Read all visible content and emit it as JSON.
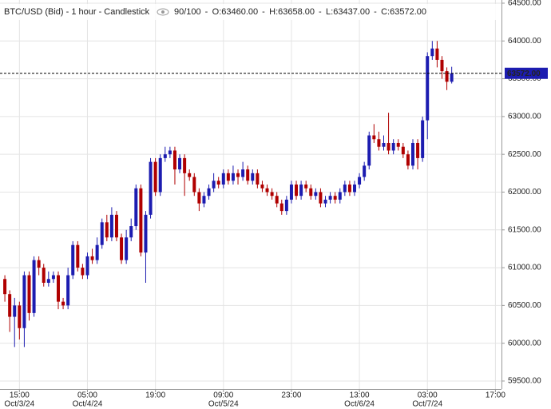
{
  "chart_data": {
    "type": "candlestick",
    "title": "BTC/USD (Bid) - 1 hour - Candlestick",
    "header_items": [
      "90/100",
      "O:63460.00",
      "H:63658.00",
      "L:63437.00",
      "C:63572.00"
    ],
    "up_color": "#1c1cb0",
    "down_color": "#b00000",
    "grid": true,
    "last_price": {
      "value": 63572,
      "label": "63572.00"
    },
    "x": [
      "2024-10-03T12:00",
      "2024-10-03T13:00",
      "2024-10-03T14:00",
      "2024-10-03T15:00",
      "2024-10-03T16:00",
      "2024-10-03T17:00",
      "2024-10-03T18:00",
      "2024-10-03T19:00",
      "2024-10-03T20:00",
      "2024-10-03T21:00",
      "2024-10-03T22:00",
      "2024-10-03T23:00",
      "2024-10-04T00:00",
      "2024-10-04T01:00",
      "2024-10-04T02:00",
      "2024-10-04T03:00",
      "2024-10-04T04:00",
      "2024-10-04T05:00",
      "2024-10-04T06:00",
      "2024-10-04T07:00",
      "2024-10-04T08:00",
      "2024-10-04T09:00",
      "2024-10-04T10:00",
      "2024-10-04T11:00",
      "2024-10-04T12:00",
      "2024-10-04T13:00",
      "2024-10-04T14:00",
      "2024-10-04T15:00",
      "2024-10-04T16:00",
      "2024-10-04T17:00",
      "2024-10-04T18:00",
      "2024-10-04T19:00",
      "2024-10-04T20:00",
      "2024-10-04T21:00",
      "2024-10-04T22:00",
      "2024-10-04T23:00",
      "2024-10-05T00:00",
      "2024-10-05T01:00",
      "2024-10-05T02:00",
      "2024-10-05T03:00",
      "2024-10-05T04:00",
      "2024-10-05T05:00",
      "2024-10-05T06:00",
      "2024-10-05T07:00",
      "2024-10-05T08:00",
      "2024-10-05T09:00",
      "2024-10-05T10:00",
      "2024-10-05T11:00",
      "2024-10-05T12:00",
      "2024-10-05T13:00",
      "2024-10-05T14:00",
      "2024-10-05T15:00",
      "2024-10-05T16:00",
      "2024-10-05T17:00",
      "2024-10-05T18:00",
      "2024-10-05T19:00",
      "2024-10-05T20:00",
      "2024-10-05T21:00",
      "2024-10-05T22:00",
      "2024-10-05T23:00",
      "2024-10-06T00:00",
      "2024-10-06T01:00",
      "2024-10-06T02:00",
      "2024-10-06T03:00",
      "2024-10-06T04:00",
      "2024-10-06T05:00",
      "2024-10-06T06:00",
      "2024-10-06T07:00",
      "2024-10-06T08:00",
      "2024-10-06T09:00",
      "2024-10-06T10:00",
      "2024-10-06T11:00",
      "2024-10-06T12:00",
      "2024-10-06T13:00",
      "2024-10-06T14:00",
      "2024-10-06T15:00",
      "2024-10-06T16:00",
      "2024-10-06T17:00",
      "2024-10-06T18:00",
      "2024-10-06T19:00",
      "2024-10-06T20:00",
      "2024-10-06T21:00",
      "2024-10-06T22:00",
      "2024-10-06T23:00",
      "2024-10-07T00:00",
      "2024-10-07T01:00",
      "2024-10-07T02:00",
      "2024-10-07T03:00",
      "2024-10-07T04:00",
      "2024-10-07T05:00",
      "2024-10-07T06:00",
      "2024-10-07T07:00",
      "2024-10-07T08:00"
    ],
    "open": [
      60850,
      60650,
      60350,
      60500,
      60200,
      60900,
      60400,
      61100,
      61000,
      60800,
      60850,
      60900,
      60550,
      60500,
      60900,
      61300,
      61000,
      60900,
      61150,
      61100,
      61300,
      61600,
      61400,
      61700,
      61400,
      61100,
      61400,
      61550,
      62050,
      61200,
      61700,
      62400,
      62000,
      62450,
      62500,
      62550,
      62300,
      62450,
      62250,
      62200,
      62000,
      61850,
      61950,
      62050,
      62150,
      62100,
      62250,
      62150,
      62250,
      62200,
      62300,
      62150,
      62250,
      62100,
      62050,
      62000,
      61950,
      61850,
      61750,
      61900,
      62100,
      61950,
      62100,
      62050,
      61950,
      62000,
      61850,
      61900,
      61950,
      61900,
      62000,
      62100,
      62000,
      62100,
      62200,
      62350,
      62750,
      62700,
      62600,
      62650,
      62550,
      62650,
      62600,
      62500,
      62350,
      62650,
      62450,
      62950,
      63800,
      63900,
      63750,
      63600,
      63460
    ],
    "high": [
      60900,
      60700,
      60600,
      60550,
      60950,
      60950,
      61150,
      61150,
      61050,
      60950,
      60950,
      60950,
      60600,
      61000,
      61350,
      61350,
      61050,
      61200,
      61250,
      61400,
      61650,
      61700,
      61800,
      61750,
      61450,
      61500,
      61650,
      62100,
      62100,
      61750,
      62450,
      62450,
      62500,
      62600,
      62600,
      62600,
      62500,
      62500,
      62300,
      62250,
      62050,
      62000,
      62100,
      62250,
      62200,
      62300,
      62300,
      62350,
      62300,
      62400,
      62350,
      62300,
      62300,
      62150,
      62100,
      62050,
      62000,
      61900,
      61950,
      62150,
      62150,
      62150,
      62150,
      62100,
      62050,
      62050,
      61950,
      62000,
      62000,
      62050,
      62150,
      62150,
      62150,
      62250,
      62400,
      62800,
      62900,
      62800,
      62750,
      63050,
      62700,
      62700,
      62650,
      62550,
      62700,
      62700,
      63000,
      63850,
      64000,
      64000,
      63800,
      63650,
      63658
    ],
    "low": [
      60550,
      60150,
      59950,
      60050,
      59950,
      60300,
      60350,
      60900,
      60750,
      60750,
      60800,
      60450,
      60450,
      60450,
      60850,
      60950,
      60850,
      60850,
      61050,
      61050,
      61250,
      61350,
      61350,
      61350,
      61050,
      61050,
      61350,
      61500,
      61150,
      60800,
      61650,
      61950,
      61950,
      62400,
      62450,
      62100,
      62250,
      61950,
      62150,
      61950,
      61750,
      61800,
      61900,
      62000,
      62050,
      62050,
      62100,
      62100,
      62100,
      62150,
      62100,
      62100,
      62050,
      62000,
      61950,
      61900,
      61800,
      61700,
      61700,
      61850,
      61900,
      61900,
      62000,
      61900,
      61900,
      61800,
      61800,
      61850,
      61850,
      61850,
      61950,
      61950,
      61950,
      62050,
      62150,
      62300,
      62650,
      62550,
      62550,
      62500,
      62500,
      62550,
      62450,
      62300,
      62300,
      62300,
      62400,
      62700,
      63750,
      63650,
      63500,
      63350,
      63437
    ],
    "close": [
      60650,
      60350,
      60500,
      60200,
      60900,
      60400,
      61100,
      61000,
      60800,
      60850,
      60900,
      60550,
      60500,
      60900,
      61300,
      61000,
      60900,
      61150,
      61100,
      61300,
      61600,
      61400,
      61700,
      61400,
      61100,
      61400,
      61550,
      62050,
      61200,
      61700,
      62400,
      62000,
      62450,
      62500,
      62550,
      62300,
      62450,
      62250,
      62200,
      62000,
      61850,
      61950,
      62050,
      62150,
      62100,
      62250,
      62150,
      62250,
      62200,
      62300,
      62150,
      62250,
      62100,
      62050,
      62000,
      61950,
      61850,
      61750,
      61900,
      62100,
      61950,
      62100,
      62050,
      61950,
      62000,
      61850,
      61900,
      61950,
      61900,
      62000,
      62100,
      62000,
      62100,
      62200,
      62350,
      62750,
      62700,
      62600,
      62650,
      62550,
      62650,
      62600,
      62500,
      62350,
      62650,
      62450,
      62950,
      63800,
      63900,
      63750,
      63600,
      63460,
      63572
    ],
    "xlim": [
      "2024-10-03T11:00",
      "2024-10-07T18:15"
    ],
    "xticks": [
      {
        "value": "2024-10-03T15:00",
        "label": "15:00",
        "date": "Oct/3/24"
      },
      {
        "value": "2024-10-04T05:00",
        "label": "05:00",
        "date": "Oct/4/24"
      },
      {
        "value": "2024-10-04T19:00",
        "label": "19:00"
      },
      {
        "value": "2024-10-05T09:00",
        "label": "09:00",
        "date": "Oct/5/24"
      },
      {
        "value": "2024-10-05T23:00",
        "label": "23:00"
      },
      {
        "value": "2024-10-06T13:00",
        "label": "13:00",
        "date": "Oct/6/24"
      },
      {
        "value": "2024-10-07T03:00",
        "label": "03:00",
        "date": "Oct/7/24"
      },
      {
        "value": "2024-10-07T17:00",
        "label": "17:00"
      }
    ],
    "ylim": [
      59394,
      64542
    ],
    "yticks": [
      {
        "value": 59500,
        "label": "59500.00"
      },
      {
        "value": 60000,
        "label": "60000.00"
      },
      {
        "value": 60500,
        "label": "60500.00"
      },
      {
        "value": 61000,
        "label": "61000.00"
      },
      {
        "value": 61500,
        "label": "61500.00"
      },
      {
        "value": 62000,
        "label": "62000.00"
      },
      {
        "value": 62500,
        "label": "62500.00"
      },
      {
        "value": 63000,
        "label": "63000.00"
      },
      {
        "value": 63500,
        "label": "63500.00"
      },
      {
        "value": 64000,
        "label": "64000.00"
      },
      {
        "value": 64500,
        "label": "64500.00"
      }
    ]
  }
}
